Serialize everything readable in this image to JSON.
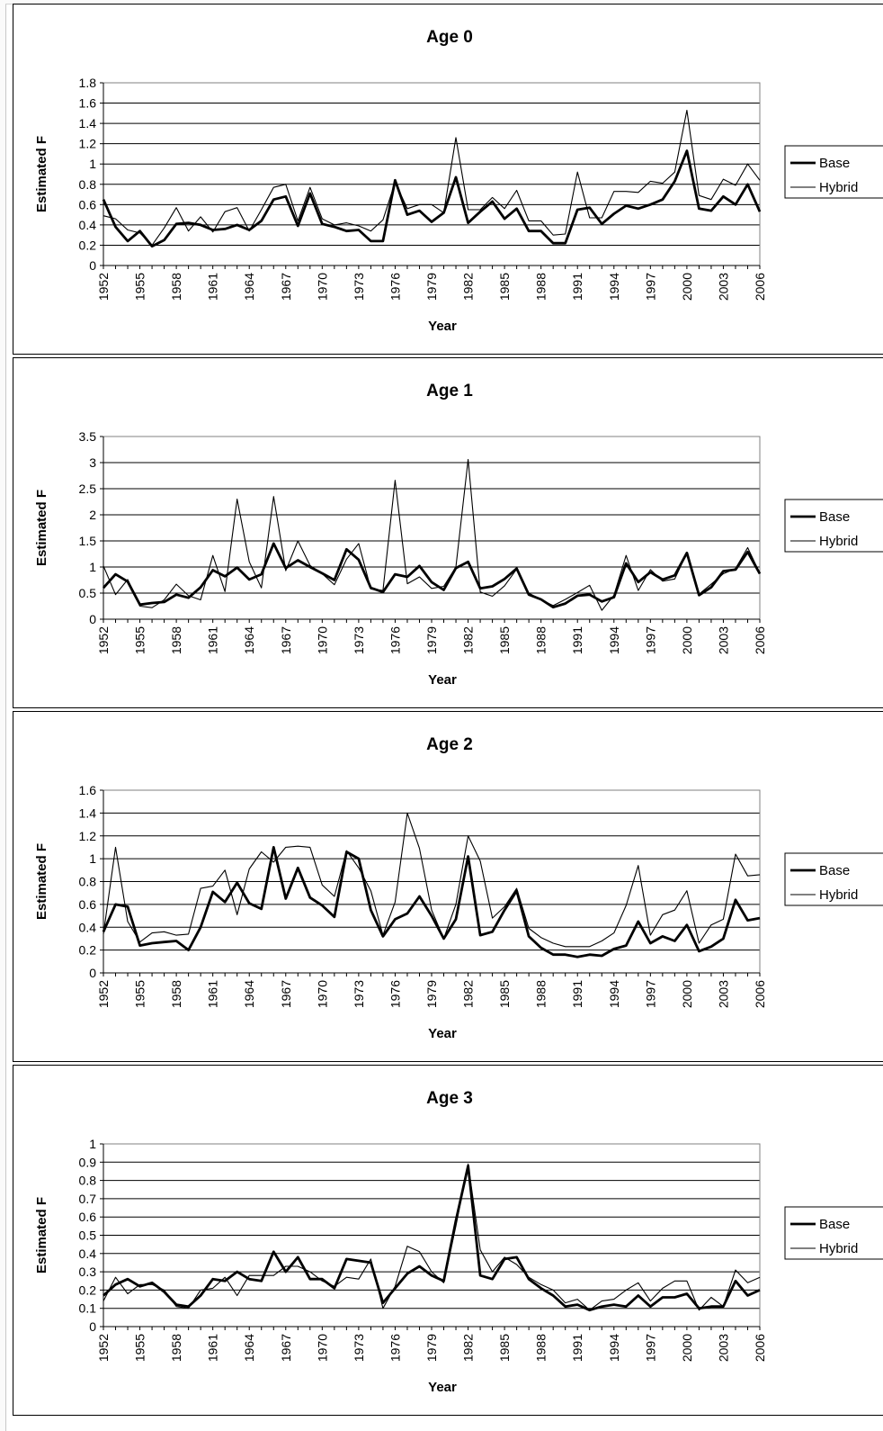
{
  "chart_data": [
    {
      "type": "line",
      "title": "Age 0",
      "xlabel": "Year",
      "ylabel": "Estimated F",
      "ylim": [
        0,
        1.8
      ],
      "yticks": [
        "0",
        "0.2",
        "0.4",
        "0.6",
        "0.8",
        "1",
        "1.2",
        "1.4",
        "1.6",
        "1.8"
      ],
      "xtick_labels": [
        "1952",
        "1955",
        "1958",
        "1961",
        "1964",
        "1967",
        "1970",
        "1973",
        "1976",
        "1979",
        "1982",
        "1985",
        "1988",
        "1991",
        "1994",
        "1997",
        "2000",
        "2003",
        "2006"
      ],
      "grid": true,
      "legend": "right",
      "x": [
        1952,
        1953,
        1954,
        1955,
        1956,
        1957,
        1958,
        1959,
        1960,
        1961,
        1962,
        1963,
        1964,
        1965,
        1966,
        1967,
        1968,
        1969,
        1970,
        1971,
        1972,
        1973,
        1974,
        1975,
        1976,
        1977,
        1978,
        1979,
        1980,
        1981,
        1982,
        1983,
        1984,
        1985,
        1986,
        1987,
        1988,
        1989,
        1990,
        1991,
        1992,
        1993,
        1994,
        1995,
        1996,
        1997,
        1998,
        1999,
        2000,
        2001,
        2002,
        2003,
        2004,
        2005,
        2006
      ],
      "series": [
        {
          "name": "Base",
          "values": [
            0.65,
            0.38,
            0.24,
            0.34,
            0.19,
            0.25,
            0.41,
            0.42,
            0.4,
            0.35,
            0.36,
            0.4,
            0.35,
            0.44,
            0.65,
            0.68,
            0.39,
            0.71,
            0.41,
            0.38,
            0.34,
            0.35,
            0.24,
            0.24,
            0.84,
            0.5,
            0.54,
            0.43,
            0.52,
            0.87,
            0.42,
            0.53,
            0.63,
            0.46,
            0.56,
            0.34,
            0.34,
            0.22,
            0.22,
            0.55,
            0.57,
            0.41,
            0.51,
            0.59,
            0.56,
            0.6,
            0.65,
            0.83,
            1.13,
            0.56,
            0.54,
            0.68,
            0.6,
            0.8,
            0.53
          ]
        },
        {
          "name": "Hybrid",
          "values": [
            0.49,
            0.46,
            0.35,
            0.32,
            0.2,
            0.37,
            0.57,
            0.34,
            0.48,
            0.33,
            0.53,
            0.57,
            0.34,
            0.55,
            0.77,
            0.8,
            0.44,
            0.77,
            0.46,
            0.4,
            0.42,
            0.39,
            0.34,
            0.45,
            0.82,
            0.56,
            0.6,
            0.6,
            0.52,
            1.26,
            0.55,
            0.55,
            0.67,
            0.56,
            0.74,
            0.44,
            0.44,
            0.3,
            0.31,
            0.92,
            0.47,
            0.47,
            0.73,
            0.73,
            0.72,
            0.83,
            0.81,
            0.92,
            1.53,
            0.69,
            0.65,
            0.85,
            0.79,
            1.0,
            0.84
          ]
        }
      ]
    },
    {
      "type": "line",
      "title": "Age 1",
      "xlabel": "Year",
      "ylabel": "Estimated F",
      "ylim": [
        0,
        3.5
      ],
      "yticks": [
        "0",
        "0.5",
        "1",
        "1.5",
        "2",
        "2.5",
        "3",
        "3.5"
      ],
      "xtick_labels": [
        "1952",
        "1955",
        "1958",
        "1961",
        "1964",
        "1967",
        "1970",
        "1973",
        "1976",
        "1979",
        "1982",
        "1985",
        "1988",
        "1991",
        "1994",
        "1997",
        "2000",
        "2003",
        "2006"
      ],
      "grid": true,
      "legend": "right",
      "x": [
        1952,
        1953,
        1954,
        1955,
        1956,
        1957,
        1958,
        1959,
        1960,
        1961,
        1962,
        1963,
        1964,
        1965,
        1966,
        1967,
        1968,
        1969,
        1970,
        1971,
        1972,
        1973,
        1974,
        1975,
        1976,
        1977,
        1978,
        1979,
        1980,
        1981,
        1982,
        1983,
        1984,
        1985,
        1986,
        1987,
        1988,
        1989,
        1990,
        1991,
        1992,
        1993,
        1994,
        1995,
        1996,
        1997,
        1998,
        1999,
        2000,
        2001,
        2002,
        2003,
        2004,
        2005,
        2006
      ],
      "series": [
        {
          "name": "Base",
          "values": [
            0.6,
            0.86,
            0.72,
            0.28,
            0.31,
            0.33,
            0.47,
            0.41,
            0.61,
            0.94,
            0.82,
            0.99,
            0.76,
            0.86,
            1.45,
            0.98,
            1.13,
            1.0,
            0.88,
            0.75,
            1.34,
            1.14,
            0.6,
            0.52,
            0.86,
            0.81,
            1.02,
            0.71,
            0.56,
            0.98,
            1.1,
            0.59,
            0.63,
            0.77,
            0.97,
            0.47,
            0.38,
            0.23,
            0.3,
            0.45,
            0.47,
            0.34,
            0.42,
            1.07,
            0.71,
            0.9,
            0.76,
            0.84,
            1.27,
            0.46,
            0.61,
            0.92,
            0.95,
            1.29,
            0.87
          ]
        },
        {
          "name": "Hybrid",
          "values": [
            1.02,
            0.47,
            0.76,
            0.25,
            0.22,
            0.37,
            0.67,
            0.45,
            0.37,
            1.22,
            0.53,
            2.3,
            1.1,
            0.6,
            2.35,
            0.93,
            1.5,
            1.03,
            0.87,
            0.66,
            1.15,
            1.45,
            0.58,
            0.55,
            2.66,
            0.68,
            0.81,
            0.59,
            0.63,
            1.0,
            3.06,
            0.52,
            0.44,
            0.64,
            0.96,
            0.5,
            0.37,
            0.26,
            0.38,
            0.51,
            0.65,
            0.17,
            0.46,
            1.22,
            0.55,
            0.95,
            0.73,
            0.77,
            1.27,
            0.48,
            0.67,
            0.87,
            0.97,
            1.37,
            0.88
          ]
        }
      ]
    },
    {
      "type": "line",
      "title": "Age 2",
      "xlabel": "Year",
      "ylabel": "Estimated F",
      "ylim": [
        0,
        1.6
      ],
      "yticks": [
        "0",
        "0.2",
        "0.4",
        "0.6",
        "0.8",
        "1",
        "1.2",
        "1.4",
        "1.6"
      ],
      "xtick_labels": [
        "1952",
        "1955",
        "1958",
        "1961",
        "1964",
        "1967",
        "1970",
        "1973",
        "1976",
        "1979",
        "1982",
        "1985",
        "1988",
        "1991",
        "1994",
        "1997",
        "2000",
        "2003",
        "2006"
      ],
      "grid": true,
      "legend": "right",
      "x": [
        1952,
        1953,
        1954,
        1955,
        1956,
        1957,
        1958,
        1959,
        1960,
        1961,
        1962,
        1963,
        1964,
        1965,
        1966,
        1967,
        1968,
        1969,
        1970,
        1971,
        1972,
        1973,
        1974,
        1975,
        1976,
        1977,
        1978,
        1979,
        1980,
        1981,
        1982,
        1983,
        1984,
        1985,
        1986,
        1987,
        1988,
        1989,
        1990,
        1991,
        1992,
        1993,
        1994,
        1995,
        1996,
        1997,
        1998,
        1999,
        2000,
        2001,
        2002,
        2003,
        2004,
        2005,
        2006
      ],
      "series": [
        {
          "name": "Base",
          "values": [
            0.36,
            0.6,
            0.58,
            0.24,
            0.26,
            0.27,
            0.28,
            0.2,
            0.4,
            0.71,
            0.62,
            0.79,
            0.61,
            0.56,
            1.1,
            0.65,
            0.92,
            0.66,
            0.59,
            0.49,
            1.06,
            1.0,
            0.55,
            0.32,
            0.47,
            0.52,
            0.67,
            0.5,
            0.3,
            0.47,
            1.02,
            0.33,
            0.36,
            0.55,
            0.72,
            0.32,
            0.22,
            0.16,
            0.16,
            0.14,
            0.16,
            0.15,
            0.21,
            0.24,
            0.45,
            0.26,
            0.32,
            0.28,
            0.42,
            0.19,
            0.23,
            0.3,
            0.64,
            0.46,
            0.48
          ]
        },
        {
          "name": "Hybrid",
          "values": [
            0.34,
            1.1,
            0.45,
            0.27,
            0.35,
            0.36,
            0.33,
            0.34,
            0.74,
            0.76,
            0.9,
            0.51,
            0.91,
            1.06,
            0.97,
            1.1,
            1.11,
            1.1,
            0.77,
            0.67,
            1.07,
            0.92,
            0.72,
            0.33,
            0.62,
            1.4,
            1.09,
            0.55,
            0.3,
            0.6,
            1.2,
            0.98,
            0.48,
            0.58,
            0.74,
            0.39,
            0.31,
            0.26,
            0.23,
            0.23,
            0.23,
            0.28,
            0.35,
            0.59,
            0.94,
            0.33,
            0.51,
            0.55,
            0.72,
            0.26,
            0.42,
            0.47,
            1.04,
            0.85,
            0.86
          ]
        }
      ]
    },
    {
      "type": "line",
      "title": "Age 3",
      "xlabel": "Year",
      "ylabel": "Estimated F",
      "ylim": [
        0,
        1
      ],
      "yticks": [
        "0",
        "0.1",
        "0.2",
        "0.3",
        "0.4",
        "0.5",
        "0.6",
        "0.7",
        "0.8",
        "0.9",
        "1"
      ],
      "xtick_labels": [
        "1952",
        "1955",
        "1958",
        "1961",
        "1964",
        "1967",
        "1970",
        "1973",
        "1976",
        "1979",
        "1982",
        "1985",
        "1988",
        "1991",
        "1994",
        "1997",
        "2000",
        "2003",
        "2006"
      ],
      "grid": true,
      "legend": "right",
      "x": [
        1952,
        1953,
        1954,
        1955,
        1956,
        1957,
        1958,
        1959,
        1960,
        1961,
        1962,
        1963,
        1964,
        1965,
        1966,
        1967,
        1968,
        1969,
        1970,
        1971,
        1972,
        1973,
        1974,
        1975,
        1976,
        1977,
        1978,
        1979,
        1980,
        1981,
        1982,
        1983,
        1984,
        1985,
        1986,
        1987,
        1988,
        1989,
        1990,
        1991,
        1992,
        1993,
        1994,
        1995,
        1996,
        1997,
        1998,
        1999,
        2000,
        2001,
        2002,
        2003,
        2004,
        2005,
        2006
      ],
      "series": [
        {
          "name": "Base",
          "values": [
            0.17,
            0.23,
            0.26,
            0.22,
            0.24,
            0.19,
            0.12,
            0.11,
            0.17,
            0.26,
            0.25,
            0.3,
            0.26,
            0.25,
            0.41,
            0.3,
            0.38,
            0.26,
            0.26,
            0.21,
            0.37,
            0.36,
            0.35,
            0.13,
            0.21,
            0.29,
            0.33,
            0.28,
            0.25,
            0.58,
            0.88,
            0.28,
            0.26,
            0.37,
            0.38,
            0.26,
            0.21,
            0.17,
            0.11,
            0.12,
            0.09,
            0.11,
            0.12,
            0.11,
            0.17,
            0.11,
            0.16,
            0.16,
            0.18,
            0.1,
            0.11,
            0.11,
            0.25,
            0.17,
            0.2
          ]
        },
        {
          "name": "Hybrid",
          "values": [
            0.14,
            0.27,
            0.18,
            0.23,
            0.23,
            0.2,
            0.11,
            0.1,
            0.2,
            0.21,
            0.27,
            0.17,
            0.28,
            0.28,
            0.28,
            0.33,
            0.33,
            0.3,
            0.25,
            0.22,
            0.27,
            0.26,
            0.37,
            0.1,
            0.22,
            0.44,
            0.41,
            0.3,
            0.24,
            0.55,
            0.89,
            0.42,
            0.3,
            0.38,
            0.34,
            0.27,
            0.23,
            0.2,
            0.13,
            0.15,
            0.09,
            0.14,
            0.15,
            0.2,
            0.24,
            0.14,
            0.21,
            0.25,
            0.25,
            0.09,
            0.16,
            0.11,
            0.31,
            0.24,
            0.27
          ]
        }
      ]
    }
  ]
}
